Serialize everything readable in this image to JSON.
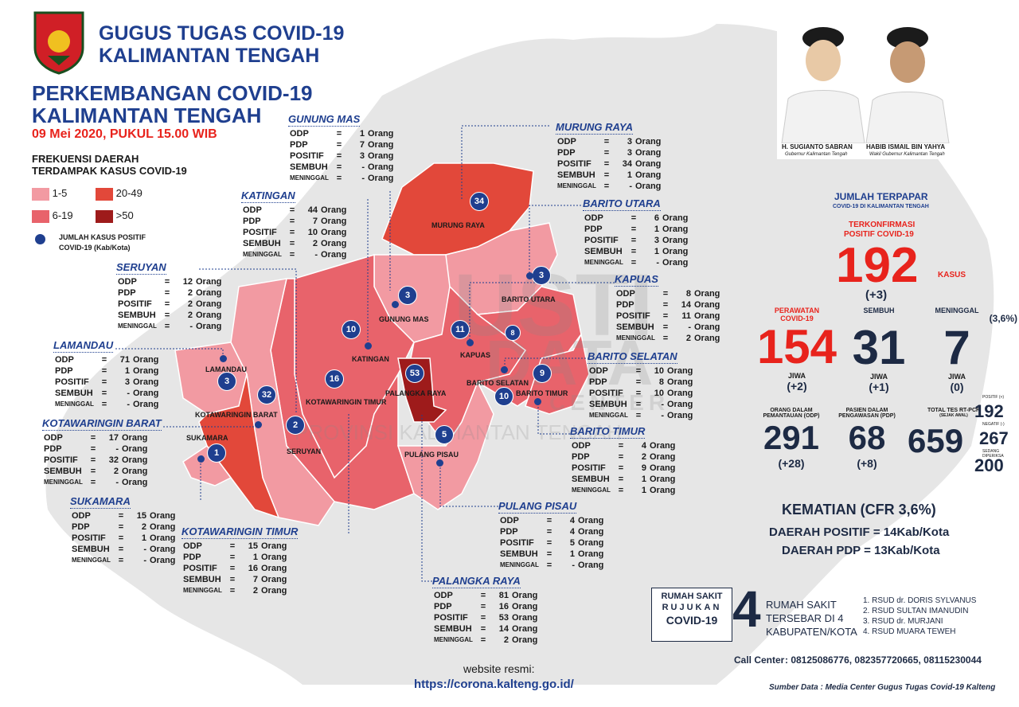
{
  "header": {
    "org_line1": "GUGUS TUGAS COVID-19",
    "org_line2": "KALIMANTAN TENGAH",
    "title_line1": "PERKEMBANGAN COVID-19",
    "title_line2": "KALIMANTAN TENGAH",
    "date": "09 Mei 2020, PUKUL 15.00 WIB"
  },
  "legend": {
    "title_line1": "FREKUENSI DAERAH",
    "title_line2": "TERDAMPAK KASUS COVID-19",
    "items": [
      {
        "label": "1-5",
        "color": "#f29aa2"
      },
      {
        "label": "20-49",
        "color": "#e2483a"
      },
      {
        "label": "6-19",
        "color": "#e8636b"
      },
      {
        "label": ">50",
        "color": "#9e1b1b"
      }
    ],
    "dot_label_line1": "JUMLAH KASUS POSITIF",
    "dot_label_line2": "COVID-19 (Kab/Kota)"
  },
  "regions": {
    "gunung_mas": {
      "name": "GUNUNG MAS",
      "odp": "1",
      "pdp": "7",
      "positif": "3",
      "sembuh": "-",
      "meninggal": "-"
    },
    "katingan": {
      "name": "KATINGAN",
      "odp": "44",
      "pdp": "7",
      "positif": "10",
      "sembuh": "2",
      "meninggal": "-"
    },
    "seruyan": {
      "name": "SERUYAN",
      "odp": "12",
      "pdp": "2",
      "positif": "2",
      "sembuh": "2",
      "meninggal": "-"
    },
    "lamandau": {
      "name": "LAMANDAU",
      "odp": "71",
      "pdp": "1",
      "positif": "3",
      "sembuh": "-",
      "meninggal": "-"
    },
    "kobar": {
      "name": "KOTAWARINGIN BARAT",
      "odp": "17",
      "pdp": "-",
      "positif": "32",
      "sembuh": "2",
      "meninggal": "-"
    },
    "sukamara": {
      "name": "SUKAMARA",
      "odp": "15",
      "pdp": "2",
      "positif": "1",
      "sembuh": "-",
      "meninggal": "-"
    },
    "kotim": {
      "name": "KOTAWARINGIN TIMUR",
      "odp": "15",
      "pdp": "1",
      "positif": "16",
      "sembuh": "7",
      "meninggal": "2"
    },
    "murung_raya": {
      "name": "MURUNG RAYA",
      "odp": "3",
      "pdp": "3",
      "positif": "34",
      "sembuh": "1",
      "meninggal": "-"
    },
    "barito_utara": {
      "name": "BARITO UTARA",
      "odp": "6",
      "pdp": "1",
      "positif": "3",
      "sembuh": "1",
      "meninggal": "-"
    },
    "kapuas": {
      "name": "KAPUAS",
      "odp": "8",
      "pdp": "14",
      "positif": "11",
      "sembuh": "-",
      "meninggal": "2"
    },
    "barito_selatan": {
      "name": "BARITO SELATAN",
      "odp": "10",
      "pdp": "8",
      "positif": "10",
      "sembuh": "-",
      "meninggal": "-"
    },
    "barito_timur": {
      "name": "BARITO TIMUR",
      "odp": "4",
      "pdp": "2",
      "positif": "9",
      "sembuh": "1",
      "meninggal": "1"
    },
    "pulang_pisau": {
      "name": "PULANG PISAU",
      "odp": "4",
      "pdp": "4",
      "positif": "5",
      "sembuh": "1",
      "meninggal": "-"
    },
    "palangka_raya": {
      "name": "PALANGKA RAYA",
      "odp": "81",
      "pdp": "16",
      "positif": "53",
      "sembuh": "14",
      "meninggal": "2"
    }
  },
  "row_labels": {
    "odp": "ODP",
    "pdp": "PDP",
    "positif": "POSITIF",
    "sembuh": "SEMBUH",
    "meninggal": "MENINGGAL",
    "eq": "=",
    "unit": "Orang"
  },
  "map_labels": {
    "murung_raya": "MURUNG RAYA",
    "gunung_mas": "GUNUNG MAS",
    "barito_utara": "BARITO UTARA",
    "katingan": "KATINGAN",
    "kapuas": "KAPUAS",
    "lamandau": "LAMANDAU",
    "palangka_raya": "PALANGKA RAYA",
    "barito_selatan": "BARITO SELATAN",
    "barito_timur": "BARITO TIMUR",
    "kobar": "KOTAWARINGIN BARAT",
    "kotim": "KOTAWARINGIN TIMUR",
    "sukamara": "SUKAMARA",
    "seruyan": "SERUYAN",
    "pulang_pisau": "PULANG PISAU"
  },
  "markers": {
    "murung_raya": "34",
    "gunung_mas": "3",
    "barito_utara": "3",
    "katingan": "10",
    "kapuas": "11",
    "lamandau": "3",
    "palangka_raya": "53",
    "barito_selatan_a": "8",
    "barito_timur": "9",
    "kobar": "32",
    "kotim": "16",
    "seruyan": "2",
    "sukamara": "1",
    "barito_selatan_b": "10",
    "pulang_pisau": "5"
  },
  "watermark": {
    "line1": "USTI",
    "line2": "DATA",
    "line3": "CENTER",
    "line4": "PROVINSI KALIMANTAN TENGAH"
  },
  "leaders": {
    "name1": "H. SUGIANTO SABRAN",
    "role1": "Gubernur Kalimantan Tengah",
    "name2": "HABIB ISMAIL BIN YAHYA",
    "role2": "Wakil Gubernur Kalimantan Tengah"
  },
  "stats": {
    "heading": "JUMLAH TERPAPAR",
    "subheading": "COVID-19 DI KALIMANTAN TENGAH",
    "confirmed_label_1": "TERKONFIRMASI",
    "confirmed_label_2": "POSITIF COVID-19",
    "confirmed": "192",
    "confirmed_unit": "KASUS",
    "confirmed_delta": "(+3)",
    "perawatan_label_1": "PERAWATAN",
    "perawatan_label_2": "COVID-19",
    "perawatan": "154",
    "perawatan_unit": "JIWA",
    "perawatan_delta": "(+2)",
    "sembuh_label": "SEMBUH",
    "sembuh": "31",
    "sembuh_unit": "JIWA",
    "sembuh_delta": "(+1)",
    "meninggal_label": "MENINGGAL",
    "meninggal_pct": "(3,6%)",
    "meninggal": "7",
    "meninggal_unit": "JIWA",
    "meninggal_delta": "(0)",
    "odp_label_1": "ORANG DALAM",
    "odp_label_2": "PEMANTAUAN (ODP)",
    "odp": "291",
    "odp_delta": "(+28)",
    "pdp_label_1": "PASIEN DALAM",
    "pdp_label_2": "PENGAWASAN (PDP)",
    "pdp": "68",
    "pdp_delta": "(+8)",
    "tes_label_1": "TOTAL TES RT-PCR",
    "tes_label_2": "(SEJAK AWAL)",
    "tes": "659",
    "tes_pos_label": "POSITIF (+)",
    "tes_pos": "192",
    "tes_neg_label": "NEGATIF (-)",
    "tes_neg": "267",
    "tes_proc_label": "SEDANG DIPERIKSA",
    "tes_proc": "200",
    "kematian_label": "KEMATIAN (CFR",
    "kematian_value": "3,6%)",
    "daerah_positif_label": "DAERAH POSITIF =",
    "daerah_positif": "14",
    "daerah_unit": "Kab/Kota",
    "daerah_pdp_label": "DAERAH PDP =",
    "daerah_pdp": "13"
  },
  "hospital": {
    "label_1": "RUMAH SAKIT",
    "label_2": "RUJUKAN",
    "label_3": "COVID-19",
    "count": "4",
    "desc_1": "RUMAH SAKIT",
    "desc_2": "TERSEBAR DI 4",
    "desc_3": "KABUPATEN/KOTA",
    "list": [
      "1. RSUD dr. DORIS SYLVANUS",
      "2. RSUD SULTAN IMANUDIN",
      "3. RSUD dr. MURJANI",
      "4. RSUD MUARA TEWEH"
    ]
  },
  "footer": {
    "website_label": "website resmi:",
    "website": "https://corona.kalteng.go.id/",
    "call_center_label": "Call Center",
    "call_center": ": 08125086776, 082357720665, 08115230044",
    "source": "Sumber Data : Media Center Gugus Tugas Covid-19 Kalteng"
  },
  "colors": {
    "navy": "#1f3f8f",
    "red": "#e8231c",
    "dark_text": "#1d2a44",
    "map_gray": "#e6e6e6"
  }
}
